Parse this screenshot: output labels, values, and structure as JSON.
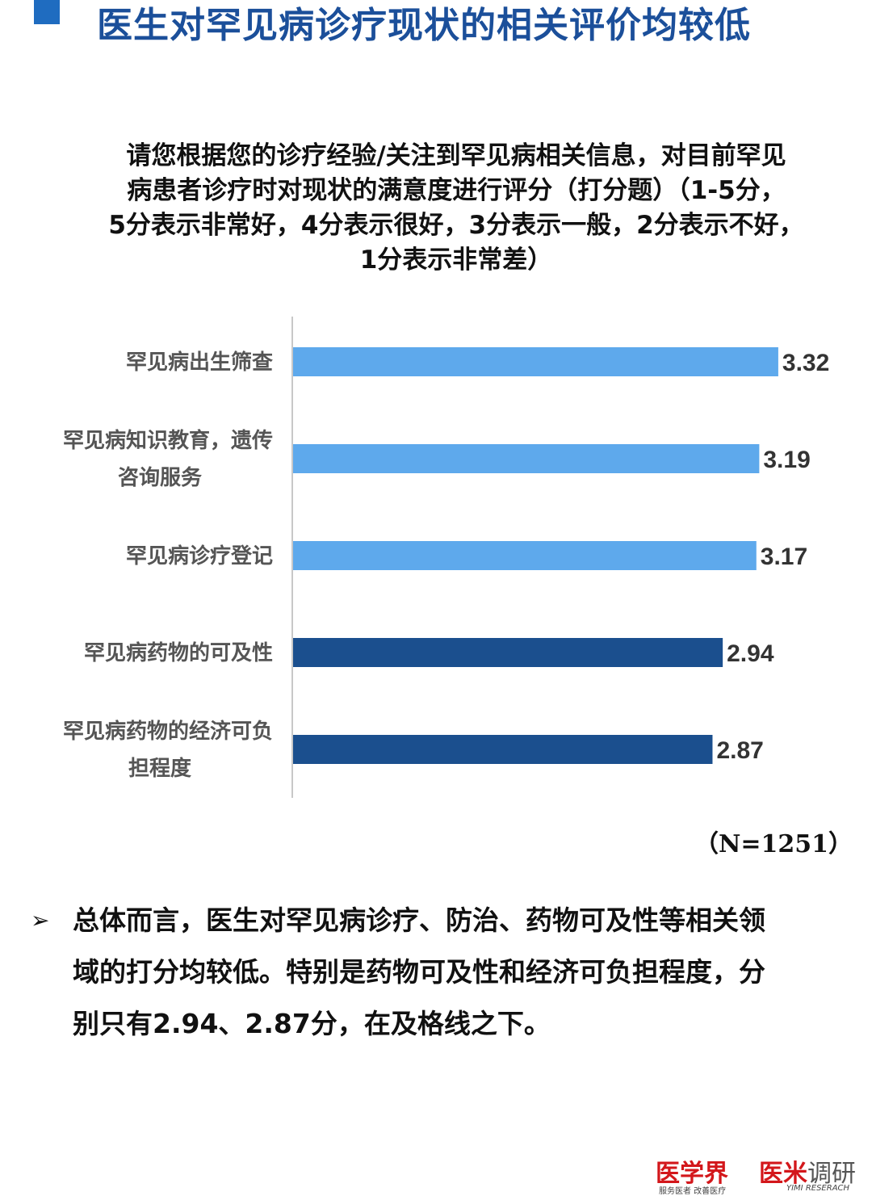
{
  "header": {
    "title": "医生对罕见病诊疗现状的相关评价均较低"
  },
  "question": {
    "lines": [
      "请您根据您的诊疗经验/关注到罕见病相关信息，对目前罕见",
      "病患者诊疗时对现状的满意度进行评分（打分题）（1-5分，",
      "5分表示非常好，4分表示很好，3分表示一般，2分表示不好，",
      "1分表示非常差）"
    ]
  },
  "chart_data": {
    "type": "bar",
    "orientation": "horizontal",
    "categories": [
      [
        "罕见病出生筛查"
      ],
      [
        "罕见病知识教育，遗传",
        "咨询服务"
      ],
      [
        "罕见病诊疗登记"
      ],
      [
        "罕见病药物的可及性"
      ],
      [
        "罕见病药物的经济可负",
        "担程度"
      ]
    ],
    "values": [
      3.32,
      3.19,
      3.17,
      2.94,
      2.87
    ],
    "value_labels": [
      "3.32",
      "3.19",
      "3.17",
      "2.94",
      "2.87"
    ],
    "bar_colors": [
      "#5ea9ec",
      "#5ea9ec",
      "#5ea9ec",
      "#1b4f8e",
      "#1b4f8e"
    ],
    "grid": false,
    "legend": "none"
  },
  "sample_size": "（N=1251）",
  "conclusion": {
    "bullet_icon": "arrow-bullet-icon",
    "bullet_glyph": "➢",
    "lines": [
      "总体而言，医生对罕见病诊疗、防治、药物可及性等相关领",
      "域的打分均较低。特别是药物可及性和经济可负担程度，分",
      "别只有2.94、2.87分，在及格线之下。"
    ]
  },
  "footer": {
    "logo_a": "医学界",
    "logo_a_sub": "服务医者 改善医疗",
    "logo_b_main": "医米",
    "logo_b_rest": "调研",
    "logo_b_sub": "YIMI RESERACH"
  },
  "colors": {
    "title": "#1b4f9a",
    "light_bar": "#5ea9ec",
    "dark_bar": "#1b4f8e",
    "logo_red": "#d3171b"
  }
}
